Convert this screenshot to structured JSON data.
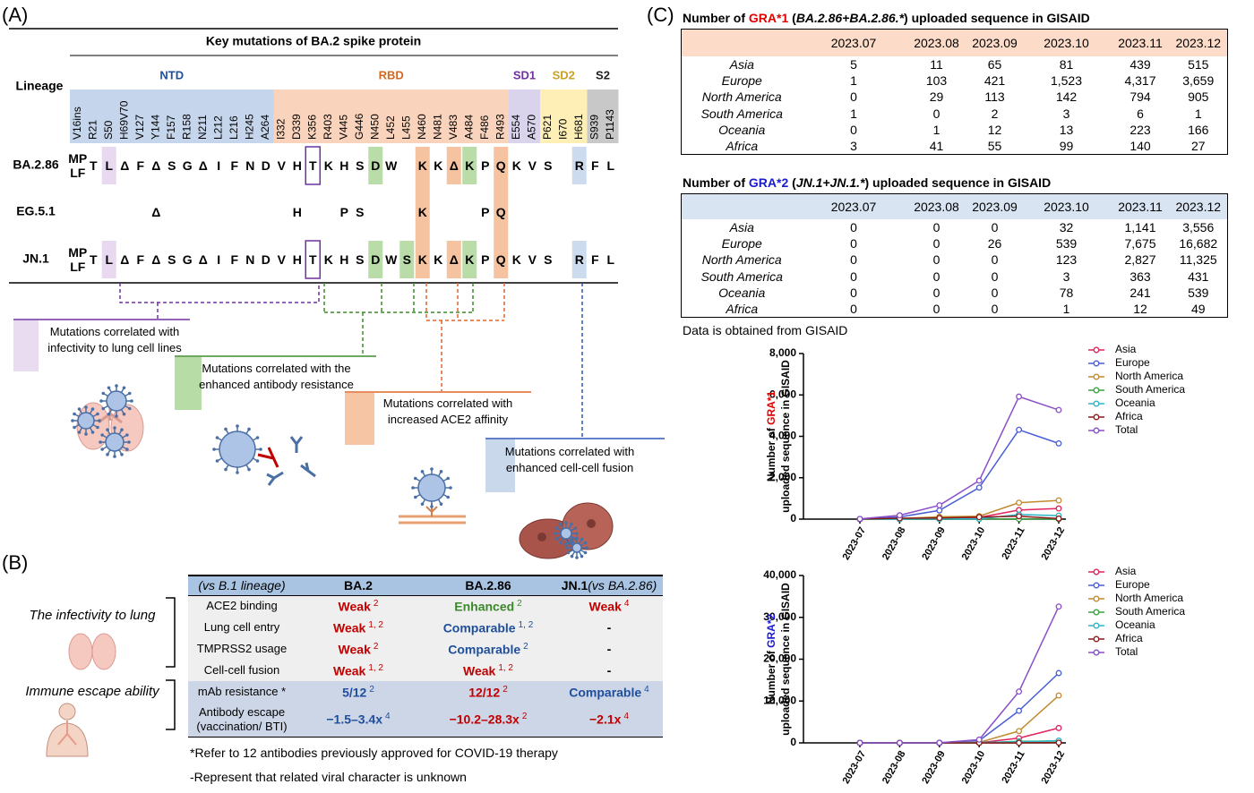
{
  "panel_a": {
    "label": "(A)",
    "title": "Key mutations of BA.2 spike protein",
    "lineage_label": "Lineage",
    "domains": [
      {
        "name": "NTD",
        "color": "#1f4e9c",
        "fill": "#c5d6ec",
        "positions": [
          "V16ins",
          "R21",
          "S50",
          "H69V70",
          "V127",
          "Y144",
          "F157",
          "R158",
          "N211",
          "L212",
          "L216",
          "H245",
          "A264"
        ]
      },
      {
        "name": "RBD",
        "color": "#d2691e",
        "fill": "#f9d3bb",
        "positions": [
          "I332",
          "D339",
          "K356",
          "R403",
          "V445",
          "G446",
          "N450",
          "L452",
          "L455",
          "N460",
          "N481",
          "V483",
          "A484",
          "F486",
          "R493"
        ]
      },
      {
        "name": "SD1",
        "color": "#7030a0",
        "fill": "#d9d4ec",
        "positions": [
          "E554",
          "A570"
        ]
      },
      {
        "name": "SD2",
        "color": "#c9a227",
        "fill": "#fdefb6",
        "positions": [
          "P621",
          "I670",
          "H681"
        ]
      },
      {
        "name": "S2",
        "color": "#222222",
        "fill": "#c8c8c8",
        "positions": [
          "S939",
          "P1143"
        ]
      }
    ],
    "rows": [
      {
        "name": "BA.2.86",
        "residues": [
          "MP LF",
          "T",
          "L",
          "Δ",
          "F",
          "Δ",
          "S",
          "G",
          "Δ",
          "I",
          "F",
          "N",
          "D",
          "V",
          "H",
          "T",
          "K",
          "H",
          "S",
          "D",
          "W",
          null,
          "K",
          "K",
          "Δ",
          "K",
          "P",
          "Q",
          "K",
          "V",
          "S",
          null,
          "R",
          "F",
          "L"
        ]
      },
      {
        "name": "EG.5.1",
        "residues": [
          null,
          null,
          null,
          null,
          null,
          "Δ",
          null,
          null,
          null,
          null,
          null,
          null,
          null,
          null,
          "H",
          null,
          null,
          "P",
          "S",
          null,
          null,
          null,
          "K",
          null,
          null,
          null,
          "P",
          "Q",
          null,
          null,
          null,
          null,
          null,
          null,
          null
        ]
      },
      {
        "name": "JN.1",
        "residues": [
          "MP LF",
          "T",
          "L",
          "Δ",
          "F",
          "Δ",
          "S",
          "G",
          "Δ",
          "I",
          "F",
          "N",
          "D",
          "V",
          "H",
          "T",
          "K",
          "H",
          "S",
          "D",
          "W",
          "S",
          "K",
          "K",
          "Δ",
          "K",
          "P",
          "Q",
          "K",
          "V",
          "S",
          null,
          "R",
          "F",
          "L"
        ]
      }
    ],
    "annotations": [
      "Mutations correlated with infectivity to lung cell lines",
      "Mutations correlated with the enhanced antibody resistance",
      "Mutations correlated with increased ACE2 affinity",
      "Mutations correlated with enhanced cell-cell fusion"
    ]
  },
  "panel_b": {
    "label": "(B)",
    "header": {
      "ref": "(vs B.1 lineage)",
      "columns": [
        {
          "name": "BA.2"
        },
        {
          "name": "BA.2.86"
        },
        {
          "name": "JN.1",
          "note": "(vs BA.2.86)"
        }
      ]
    },
    "groups": [
      {
        "name": "The infectivity to lung",
        "rows": [
          {
            "label": "ACE2 binding",
            "cells": [
              {
                "text": "Weak",
                "sup": "2",
                "color": "#c00000"
              },
              {
                "text": "Enhanced",
                "sup": "2",
                "color": "#3a8a2a"
              },
              {
                "text": "Weak",
                "sup": "4",
                "color": "#c00000"
              }
            ]
          },
          {
            "label": "Lung cell entry",
            "cells": [
              {
                "text": "Weak",
                "sup": "1, 2",
                "color": "#c00000"
              },
              {
                "text": "Comparable",
                "sup": "1, 2",
                "color": "#1f4e9c"
              },
              {
                "text": "-",
                "color": "#000000"
              }
            ]
          },
          {
            "label": "TMPRSS2 usage",
            "cells": [
              {
                "text": "Weak",
                "sup": "2",
                "color": "#c00000"
              },
              {
                "text": "Comparable",
                "sup": "2",
                "color": "#1f4e9c"
              },
              {
                "text": "-",
                "color": "#000000"
              }
            ]
          },
          {
            "label": "Cell-cell fusion",
            "cells": [
              {
                "text": "Weak",
                "sup": "1, 2",
                "color": "#c00000"
              },
              {
                "text": "Weak",
                "sup": "1, 2",
                "color": "#c00000"
              },
              {
                "text": "-",
                "color": "#000000"
              }
            ]
          }
        ]
      },
      {
        "name": "Immune escape ability",
        "rows": [
          {
            "label": "mAb resistance *",
            "cells": [
              {
                "text": "5/12",
                "sup": "2",
                "color": "#1f4e9c"
              },
              {
                "text": "12/12",
                "sup": "2",
                "color": "#c00000"
              },
              {
                "text": "Comparable",
                "sup": "4",
                "color": "#1f4e9c"
              }
            ]
          },
          {
            "label": "Antibody escape (vaccination/ BTI)",
            "cells": [
              {
                "text": "−1.5–3.4x",
                "sup": "4",
                "color": "#1f4e9c"
              },
              {
                "text": "−10.2–28.3x",
                "sup": "2",
                "color": "#c00000"
              },
              {
                "text": "−2.1x",
                "sup": "4",
                "color": "#c00000"
              }
            ]
          }
        ]
      }
    ],
    "footnotes": [
      "*Refer to 12 antibodies previously approved for COVID-19 therapy",
      "-Represent that related viral character is unknown"
    ]
  },
  "panel_c": {
    "label": "(C)",
    "tables": [
      {
        "title": [
          {
            "text": "Number of "
          },
          {
            "text": "GRA*1",
            "color": "#e00000"
          },
          {
            "text": " ("
          },
          {
            "text": "BA.2.86+BA.2.86.*",
            "italic": true
          },
          {
            "text": ") uploaded sequence in GISAID"
          }
        ],
        "fill": "#fcdcc8",
        "columns": [
          "2023.07",
          "2023.08",
          "2023.09",
          "2023.10",
          "2023.11",
          "2023.12"
        ],
        "rows": [
          {
            "region": "Asia",
            "values": [
              "5",
              "11",
              "65",
              "81",
              "439",
              "515"
            ]
          },
          {
            "region": "Europe",
            "values": [
              "1",
              "103",
              "421",
              "1,523",
              "4,317",
              "3,659"
            ]
          },
          {
            "region": "North America",
            "values": [
              "0",
              "29",
              "113",
              "142",
              "794",
              "905"
            ]
          },
          {
            "region": "South America",
            "values": [
              "1",
              "0",
              "2",
              "3",
              "6",
              "1"
            ]
          },
          {
            "region": "Oceania",
            "values": [
              "0",
              "1",
              "12",
              "13",
              "223",
              "166"
            ]
          },
          {
            "region": "Africa",
            "values": [
              "3",
              "41",
              "55",
              "99",
              "140",
              "27"
            ]
          }
        ]
      },
      {
        "title": [
          {
            "text": "Number of "
          },
          {
            "text": "GRA*2",
            "color": "#1a1ad0"
          },
          {
            "text": " ("
          },
          {
            "text": "JN.1+JN.1.*",
            "italic": true
          },
          {
            "text": ") uploaded sequence in GISAID"
          }
        ],
        "fill": "#d9e4f3",
        "columns": [
          "2023.07",
          "2023.08",
          "2023.09",
          "2023.10",
          "2023.11",
          "2023.12"
        ],
        "rows": [
          {
            "region": "Asia",
            "values": [
              "0",
              "0",
              "0",
              "32",
              "1,141",
              "3,556"
            ]
          },
          {
            "region": "Europe",
            "values": [
              "0",
              "0",
              "26",
              "539",
              "7,675",
              "16,682"
            ]
          },
          {
            "region": "North America",
            "values": [
              "0",
              "0",
              "0",
              "123",
              "2,827",
              "11,325"
            ]
          },
          {
            "region": "South America",
            "values": [
              "0",
              "0",
              "0",
              "3",
              "363",
              "431"
            ]
          },
          {
            "region": "Oceania",
            "values": [
              "0",
              "0",
              "0",
              "78",
              "241",
              "539"
            ]
          },
          {
            "region": "Africa",
            "values": [
              "0",
              "0",
              "0",
              "1",
              "12",
              "49"
            ]
          }
        ]
      }
    ],
    "source_note": "Data is obtained from GISAID"
  },
  "chart_data": [
    {
      "type": "line",
      "ylabel": [
        [
          {
            "text": "Number of "
          },
          {
            "text": "GRA*1",
            "color": "#e00000"
          }
        ],
        [
          {
            "text": "uploaded sequence in GISAID"
          }
        ]
      ],
      "categories": [
        "2023-07",
        "2023-08",
        "2023-09",
        "2023-10",
        "2023-11",
        "2023-12"
      ],
      "series": [
        {
          "name": "Asia",
          "color": "#e0245e",
          "values": [
            5,
            11,
            65,
            81,
            439,
            515
          ]
        },
        {
          "name": "Europe",
          "color": "#4a5fd6",
          "values": [
            1,
            103,
            421,
            1523,
            4317,
            3659
          ]
        },
        {
          "name": "North America",
          "color": "#c08a2e",
          "values": [
            0,
            29,
            113,
            142,
            794,
            905
          ]
        },
        {
          "name": "South America",
          "color": "#3aa040",
          "values": [
            1,
            0,
            2,
            3,
            6,
            1
          ]
        },
        {
          "name": "Oceania",
          "color": "#2ab5c5",
          "values": [
            0,
            1,
            12,
            13,
            223,
            166
          ]
        },
        {
          "name": "Africa",
          "color": "#8b1a1a",
          "values": [
            3,
            41,
            55,
            99,
            140,
            27
          ]
        },
        {
          "name": "Total",
          "color": "#8a4fc8",
          "values": [
            10,
            185,
            668,
            1861,
            5919,
            5273
          ]
        }
      ],
      "ylim": [
        0,
        8000
      ],
      "yticks": [
        0,
        {
          "value": 2000,
          "label": "2,000"
        },
        {
          "value": 4000,
          "label": "4,000"
        },
        {
          "value": 6000,
          "label": "6,000"
        },
        {
          "value": 8000,
          "label": "8,000"
        }
      ],
      "legend": "upper right"
    },
    {
      "type": "line",
      "ylabel": [
        [
          {
            "text": "Number of "
          },
          {
            "text": "GRA*2",
            "color": "#1a1ad0"
          }
        ],
        [
          {
            "text": "uploaded sequence in GISAID"
          }
        ]
      ],
      "categories": [
        "2023-07",
        "2023-08",
        "2023-09",
        "2023-10",
        "2023-11",
        "2023-12"
      ],
      "series": [
        {
          "name": "Asia",
          "color": "#e0245e",
          "values": [
            0,
            0,
            0,
            32,
            1141,
            3556
          ]
        },
        {
          "name": "Europe",
          "color": "#4a5fd6",
          "values": [
            0,
            0,
            26,
            539,
            7675,
            16682
          ]
        },
        {
          "name": "North America",
          "color": "#c08a2e",
          "values": [
            0,
            0,
            0,
            123,
            2827,
            11325
          ]
        },
        {
          "name": "South America",
          "color": "#3aa040",
          "values": [
            0,
            0,
            0,
            3,
            363,
            431
          ]
        },
        {
          "name": "Oceania",
          "color": "#2ab5c5",
          "values": [
            0,
            0,
            0,
            78,
            241,
            539
          ]
        },
        {
          "name": "Africa",
          "color": "#8b1a1a",
          "values": [
            0,
            0,
            0,
            1,
            12,
            49
          ]
        },
        {
          "name": "Total",
          "color": "#8a4fc8",
          "values": [
            0,
            0,
            26,
            776,
            12259,
            32582
          ]
        }
      ],
      "ylim": [
        0,
        40000
      ],
      "yticks": [
        0,
        {
          "value": 10000,
          "label": "10,000"
        },
        {
          "value": 20000,
          "label": "20,000"
        },
        {
          "value": 30000,
          "label": "30,000"
        },
        {
          "value": 40000,
          "label": "40,000"
        }
      ],
      "legend": "upper right"
    }
  ]
}
